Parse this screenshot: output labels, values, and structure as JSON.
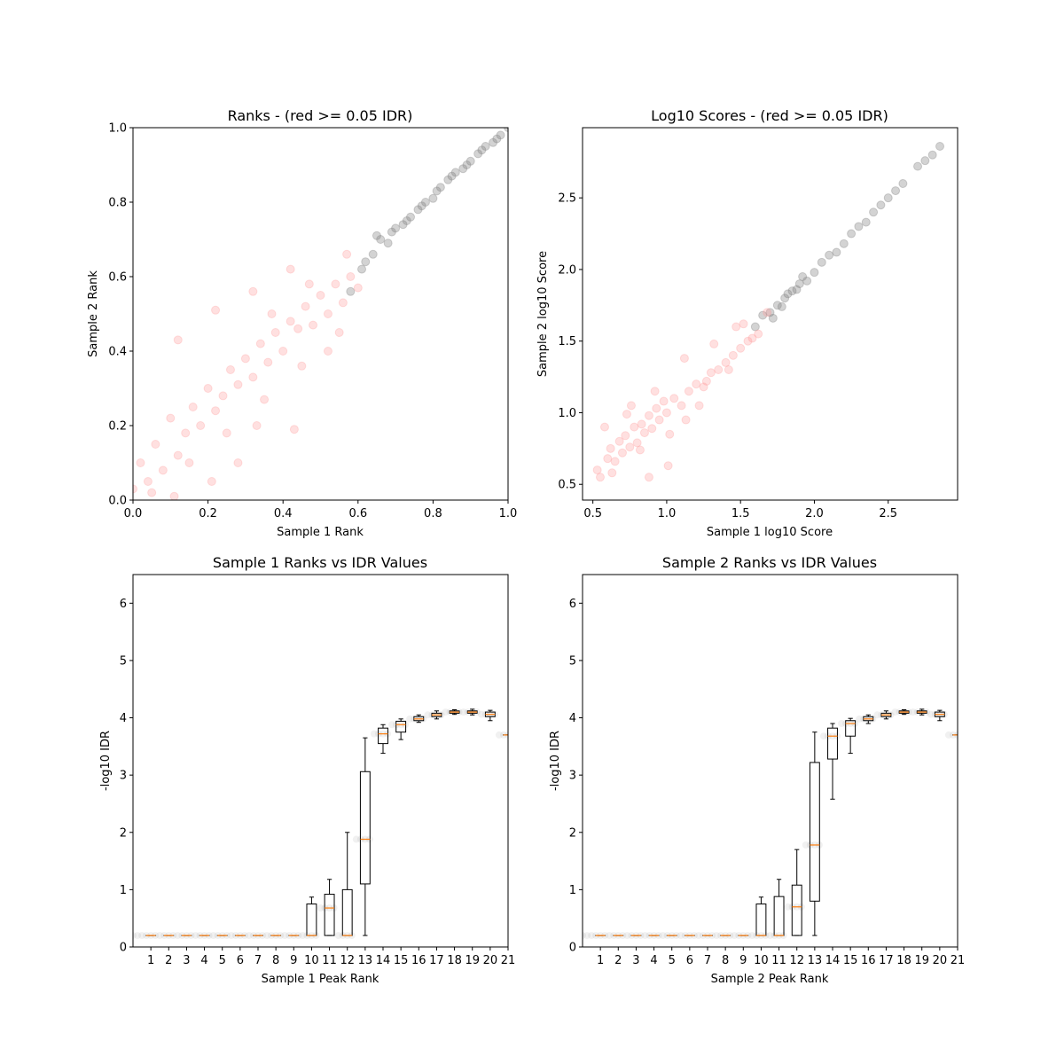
{
  "chart_data": [
    {
      "type": "scatter",
      "title": "Ranks - (red >= 0.05 IDR)",
      "xlabel": "Sample 1 Rank",
      "ylabel": "Sample 2 Rank",
      "xlim": [
        0,
        1
      ],
      "ylim": [
        0,
        1
      ],
      "xticks": [
        0.0,
        0.2,
        0.4,
        0.6,
        0.8,
        1.0
      ],
      "yticks": [
        0.0,
        0.2,
        0.4,
        0.6,
        0.8,
        1.0
      ],
      "xtick_labels": [
        "0.0",
        "0.2",
        "0.4",
        "0.6",
        "0.8",
        "1.0"
      ],
      "ytick_labels": [
        "0.0",
        "0.2",
        "0.4",
        "0.6",
        "0.8",
        "1.0"
      ],
      "colors": {
        "pass": "#808080",
        "fail": "#ff9999"
      },
      "series": [
        {
          "x": [
            0.62,
            0.64,
            0.66,
            0.68,
            0.7,
            0.72,
            0.74,
            0.76,
            0.78,
            0.8,
            0.82,
            0.84,
            0.86,
            0.88,
            0.9,
            0.92,
            0.94,
            0.96,
            0.98,
            1.0,
            0.58,
            0.61,
            0.65,
            0.69,
            0.73,
            0.77,
            0.81,
            0.85,
            0.89,
            0.93,
            0.97
          ],
          "y": [
            0.64,
            0.66,
            0.7,
            0.69,
            0.73,
            0.74,
            0.76,
            0.78,
            0.8,
            0.81,
            0.84,
            0.86,
            0.88,
            0.89,
            0.91,
            0.93,
            0.95,
            0.96,
            0.98,
            1.0,
            0.56,
            0.62,
            0.71,
            0.72,
            0.75,
            0.79,
            0.83,
            0.87,
            0.9,
            0.94,
            0.97
          ]
        },
        {
          "x": [
            0.0,
            0.02,
            0.04,
            0.06,
            0.08,
            0.1,
            0.12,
            0.14,
            0.16,
            0.18,
            0.2,
            0.22,
            0.24,
            0.26,
            0.28,
            0.3,
            0.32,
            0.34,
            0.36,
            0.38,
            0.4,
            0.42,
            0.44,
            0.46,
            0.48,
            0.5,
            0.52,
            0.54,
            0.56,
            0.58,
            0.6,
            0.05,
            0.15,
            0.25,
            0.35,
            0.45,
            0.55,
            0.12,
            0.22,
            0.32,
            0.42,
            0.52,
            0.33,
            0.43,
            0.21,
            0.11,
            0.47,
            0.57,
            0.37,
            0.28
          ],
          "y": [
            0.03,
            0.1,
            0.05,
            0.15,
            0.08,
            0.22,
            0.12,
            0.18,
            0.25,
            0.2,
            0.3,
            0.24,
            0.28,
            0.35,
            0.31,
            0.38,
            0.33,
            0.42,
            0.37,
            0.45,
            0.4,
            0.48,
            0.46,
            0.52,
            0.47,
            0.55,
            0.5,
            0.58,
            0.53,
            0.6,
            0.57,
            0.02,
            0.1,
            0.18,
            0.27,
            0.36,
            0.45,
            0.43,
            0.51,
            0.56,
            0.62,
            0.4,
            0.2,
            0.19,
            0.05,
            0.01,
            0.58,
            0.66,
            0.5,
            0.1
          ]
        }
      ]
    },
    {
      "type": "scatter",
      "title": "Log10 Scores - (red >= 0.05 IDR)",
      "xlabel": "Sample 1 log10 Score",
      "ylabel": "Sample 2 log10 Score",
      "xlim": [
        0.43,
        2.97
      ],
      "ylim": [
        0.39,
        2.99
      ],
      "xticks": [
        0.5,
        1.0,
        1.5,
        2.0,
        2.5
      ],
      "yticks": [
        0.5,
        1.0,
        1.5,
        2.0,
        2.5
      ],
      "xtick_labels": [
        "0.5",
        "1.0",
        "1.5",
        "2.0",
        "2.5"
      ],
      "ytick_labels": [
        "0.5",
        "1.0",
        "1.5",
        "2.0",
        "2.5"
      ],
      "colors": {
        "pass": "#808080",
        "fail": "#ff9999"
      },
      "series": [
        {
          "x": [
            1.6,
            1.65,
            1.7,
            1.75,
            1.8,
            1.85,
            1.9,
            1.95,
            2.0,
            2.05,
            2.1,
            2.15,
            2.2,
            2.25,
            2.3,
            2.35,
            2.4,
            2.45,
            2.5,
            2.55,
            2.6,
            2.7,
            2.75,
            2.8,
            2.85,
            1.72,
            1.78,
            1.82,
            1.88,
            1.92
          ],
          "y": [
            1.6,
            1.68,
            1.7,
            1.75,
            1.8,
            1.85,
            1.9,
            1.92,
            1.98,
            2.05,
            2.1,
            2.12,
            2.18,
            2.25,
            2.3,
            2.33,
            2.4,
            2.45,
            2.5,
            2.55,
            2.6,
            2.72,
            2.76,
            2.8,
            2.86,
            1.66,
            1.74,
            1.83,
            1.86,
            1.95
          ]
        },
        {
          "x": [
            0.53,
            0.55,
            0.6,
            0.62,
            0.65,
            0.68,
            0.7,
            0.72,
            0.75,
            0.78,
            0.8,
            0.83,
            0.85,
            0.88,
            0.9,
            0.93,
            0.95,
            0.98,
            1.0,
            1.05,
            1.1,
            1.15,
            1.2,
            1.25,
            1.3,
            1.35,
            1.4,
            1.45,
            1.5,
            1.55,
            1.58,
            0.58,
            0.63,
            0.73,
            0.82,
            0.92,
            1.02,
            1.12,
            1.22,
            1.32,
            1.42,
            1.52,
            1.62,
            1.68,
            1.01,
            1.13,
            0.76,
            0.88,
            1.27,
            1.47
          ],
          "y": [
            0.6,
            0.55,
            0.68,
            0.75,
            0.66,
            0.8,
            0.72,
            0.84,
            0.76,
            0.9,
            0.79,
            0.92,
            0.86,
            0.98,
            0.89,
            1.03,
            0.95,
            1.08,
            1.0,
            1.1,
            1.05,
            1.15,
            1.2,
            1.18,
            1.28,
            1.3,
            1.35,
            1.4,
            1.45,
            1.5,
            1.52,
            0.9,
            0.58,
            0.99,
            0.74,
            1.15,
            0.85,
            1.38,
            1.05,
            1.48,
            1.3,
            1.62,
            1.55,
            1.7,
            0.63,
            0.95,
            1.05,
            0.55,
            1.22,
            1.6
          ]
        }
      ]
    },
    {
      "type": "box",
      "title": "Sample 1 Ranks vs IDR Values",
      "xlabel": "Sample 1 Peak Rank",
      "ylabel": "-log10 IDR",
      "xlim": [
        0,
        21
      ],
      "ylim": [
        0,
        6.5
      ],
      "xtick_labels": [
        "1",
        "2",
        "3",
        "4",
        "5",
        "6",
        "7",
        "8",
        "9",
        "10",
        "11",
        "12",
        "13",
        "14",
        "15",
        "16",
        "17",
        "18",
        "19",
        "20",
        "21"
      ],
      "yticks": [
        0,
        1,
        2,
        3,
        4,
        5,
        6
      ],
      "ytick_labels": [
        "0",
        "1",
        "2",
        "3",
        "4",
        "5",
        "6"
      ],
      "boxes": [
        {
          "pos": 1,
          "whislo": 0.2,
          "q1": 0.2,
          "med": 0.2,
          "q3": 0.2,
          "whishi": 0.2
        },
        {
          "pos": 2,
          "whislo": 0.2,
          "q1": 0.2,
          "med": 0.2,
          "q3": 0.2,
          "whishi": 0.2
        },
        {
          "pos": 3,
          "whislo": 0.2,
          "q1": 0.2,
          "med": 0.2,
          "q3": 0.2,
          "whishi": 0.2
        },
        {
          "pos": 4,
          "whislo": 0.2,
          "q1": 0.2,
          "med": 0.2,
          "q3": 0.2,
          "whishi": 0.2
        },
        {
          "pos": 5,
          "whislo": 0.2,
          "q1": 0.2,
          "med": 0.2,
          "q3": 0.2,
          "whishi": 0.2
        },
        {
          "pos": 6,
          "whislo": 0.2,
          "q1": 0.2,
          "med": 0.2,
          "q3": 0.2,
          "whishi": 0.2
        },
        {
          "pos": 7,
          "whislo": 0.2,
          "q1": 0.2,
          "med": 0.2,
          "q3": 0.2,
          "whishi": 0.2
        },
        {
          "pos": 8,
          "whislo": 0.2,
          "q1": 0.2,
          "med": 0.2,
          "q3": 0.2,
          "whishi": 0.2
        },
        {
          "pos": 9,
          "whislo": 0.2,
          "q1": 0.2,
          "med": 0.2,
          "q3": 0.2,
          "whishi": 0.2
        },
        {
          "pos": 10,
          "whislo": 0.2,
          "q1": 0.2,
          "med": 0.2,
          "q3": 0.75,
          "whishi": 0.87
        },
        {
          "pos": 11,
          "whislo": 0.2,
          "q1": 0.2,
          "med": 0.68,
          "q3": 0.92,
          "whishi": 1.18
        },
        {
          "pos": 12,
          "whislo": 0.2,
          "q1": 0.2,
          "med": 0.2,
          "q3": 1.0,
          "whishi": 2.0
        },
        {
          "pos": 13,
          "whislo": 0.2,
          "q1": 1.1,
          "med": 1.88,
          "q3": 3.06,
          "whishi": 3.65
        },
        {
          "pos": 14,
          "whislo": 3.38,
          "q1": 3.55,
          "med": 3.72,
          "q3": 3.82,
          "whishi": 3.88
        },
        {
          "pos": 15,
          "whislo": 3.62,
          "q1": 3.75,
          "med": 3.88,
          "q3": 3.94,
          "whishi": 3.98
        },
        {
          "pos": 16,
          "whislo": 3.92,
          "q1": 3.95,
          "med": 3.98,
          "q3": 4.02,
          "whishi": 4.05
        },
        {
          "pos": 17,
          "whislo": 3.98,
          "q1": 4.02,
          "med": 4.05,
          "q3": 4.08,
          "whishi": 4.12
        },
        {
          "pos": 18,
          "whislo": 4.06,
          "q1": 4.08,
          "med": 4.1,
          "q3": 4.12,
          "whishi": 4.14
        },
        {
          "pos": 19,
          "whislo": 4.05,
          "q1": 4.08,
          "med": 4.1,
          "q3": 4.12,
          "whishi": 4.15
        },
        {
          "pos": 20,
          "whislo": 3.95,
          "q1": 4.02,
          "med": 4.06,
          "q3": 4.1,
          "whishi": 4.13
        },
        {
          "pos": 21,
          "whislo": 3.7,
          "q1": 3.7,
          "med": 3.7,
          "q3": 3.7,
          "whishi": 3.7
        }
      ]
    },
    {
      "type": "box",
      "title": "Sample 2 Ranks vs IDR Values",
      "xlabel": "Sample 2 Peak Rank",
      "ylabel": "-log10 IDR",
      "xlim": [
        0,
        21
      ],
      "ylim": [
        0,
        6.5
      ],
      "xtick_labels": [
        "1",
        "2",
        "3",
        "4",
        "5",
        "6",
        "7",
        "8",
        "9",
        "10",
        "11",
        "12",
        "13",
        "14",
        "15",
        "16",
        "17",
        "18",
        "19",
        "20",
        "21"
      ],
      "yticks": [
        0,
        1,
        2,
        3,
        4,
        5,
        6
      ],
      "ytick_labels": [
        "0",
        "1",
        "2",
        "3",
        "4",
        "5",
        "6"
      ],
      "boxes": [
        {
          "pos": 1,
          "whislo": 0.2,
          "q1": 0.2,
          "med": 0.2,
          "q3": 0.2,
          "whishi": 0.2
        },
        {
          "pos": 2,
          "whislo": 0.2,
          "q1": 0.2,
          "med": 0.2,
          "q3": 0.2,
          "whishi": 0.2
        },
        {
          "pos": 3,
          "whislo": 0.2,
          "q1": 0.2,
          "med": 0.2,
          "q3": 0.2,
          "whishi": 0.2
        },
        {
          "pos": 4,
          "whislo": 0.2,
          "q1": 0.2,
          "med": 0.2,
          "q3": 0.2,
          "whishi": 0.2
        },
        {
          "pos": 5,
          "whislo": 0.2,
          "q1": 0.2,
          "med": 0.2,
          "q3": 0.2,
          "whishi": 0.2
        },
        {
          "pos": 6,
          "whislo": 0.2,
          "q1": 0.2,
          "med": 0.2,
          "q3": 0.2,
          "whishi": 0.2
        },
        {
          "pos": 7,
          "whislo": 0.2,
          "q1": 0.2,
          "med": 0.2,
          "q3": 0.2,
          "whishi": 0.2
        },
        {
          "pos": 8,
          "whislo": 0.2,
          "q1": 0.2,
          "med": 0.2,
          "q3": 0.2,
          "whishi": 0.2
        },
        {
          "pos": 9,
          "whislo": 0.2,
          "q1": 0.2,
          "med": 0.2,
          "q3": 0.2,
          "whishi": 0.2
        },
        {
          "pos": 10,
          "whislo": 0.2,
          "q1": 0.2,
          "med": 0.2,
          "q3": 0.75,
          "whishi": 0.87
        },
        {
          "pos": 11,
          "whislo": 0.2,
          "q1": 0.2,
          "med": 0.2,
          "q3": 0.88,
          "whishi": 1.18
        },
        {
          "pos": 12,
          "whislo": 0.2,
          "q1": 0.2,
          "med": 0.7,
          "q3": 1.08,
          "whishi": 1.7
        },
        {
          "pos": 13,
          "whislo": 0.2,
          "q1": 0.8,
          "med": 1.78,
          "q3": 3.22,
          "whishi": 3.75
        },
        {
          "pos": 14,
          "whislo": 2.58,
          "q1": 3.28,
          "med": 3.68,
          "q3": 3.82,
          "whishi": 3.9
        },
        {
          "pos": 15,
          "whislo": 3.38,
          "q1": 3.68,
          "med": 3.9,
          "q3": 3.95,
          "whishi": 3.99
        },
        {
          "pos": 16,
          "whislo": 3.9,
          "q1": 3.95,
          "med": 3.98,
          "q3": 4.02,
          "whishi": 4.05
        },
        {
          "pos": 17,
          "whislo": 3.98,
          "q1": 4.02,
          "med": 4.05,
          "q3": 4.08,
          "whishi": 4.12
        },
        {
          "pos": 18,
          "whislo": 4.06,
          "q1": 4.08,
          "med": 4.1,
          "q3": 4.12,
          "whishi": 4.14
        },
        {
          "pos": 19,
          "whislo": 4.05,
          "q1": 4.08,
          "med": 4.1,
          "q3": 4.12,
          "whishi": 4.15
        },
        {
          "pos": 20,
          "whislo": 3.95,
          "q1": 4.02,
          "med": 4.06,
          "q3": 4.1,
          "whishi": 4.13
        },
        {
          "pos": 21,
          "whislo": 3.7,
          "q1": 3.7,
          "med": 3.7,
          "q3": 3.7,
          "whishi": 3.7
        }
      ]
    }
  ]
}
